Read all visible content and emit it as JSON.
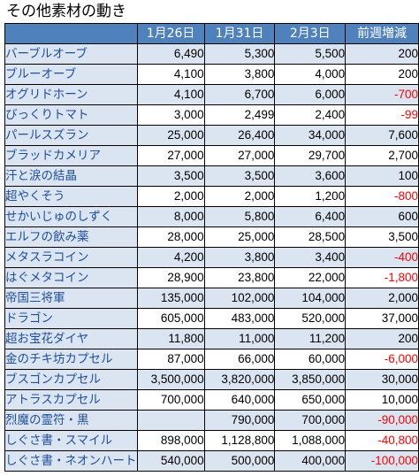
{
  "title": "その他素材の動き",
  "headers": [
    "",
    "1月26日",
    "1月31日",
    "2月3日",
    "前週増減"
  ],
  "negative_color": "#ff0000",
  "header_color": "#4f81bd",
  "rows": [
    {
      "name": "バーブルオーブ",
      "v1": "6,490",
      "v2": "5,300",
      "v3": "5,500",
      "diff": "200"
    },
    {
      "name": "ブルーオーブ",
      "v1": "4,100",
      "v2": "3,800",
      "v3": "4,000",
      "diff": "200"
    },
    {
      "name": "オグリドホーン",
      "v1": "4,100",
      "v2": "6,700",
      "v3": "6,000",
      "diff": "-700"
    },
    {
      "name": "びっくりトマト",
      "v1": "3,000",
      "v2": "2,499",
      "v3": "2,400",
      "diff": "-99"
    },
    {
      "name": "パールスズラン",
      "v1": "25,000",
      "v2": "26,400",
      "v3": "34,000",
      "diff": "7,600"
    },
    {
      "name": "ブラッドカメリア",
      "v1": "27,000",
      "v2": "27,000",
      "v3": "29,700",
      "diff": "2,700"
    },
    {
      "name": "汗と涙の結晶",
      "v1": "3,500",
      "v2": "3,500",
      "v3": "3,600",
      "diff": "100"
    },
    {
      "name": "超やくそう",
      "v1": "2,000",
      "v2": "2,000",
      "v3": "1,200",
      "diff": "-800"
    },
    {
      "name": "せかいじゅのしずく",
      "v1": "8,000",
      "v2": "5,800",
      "v3": "6,400",
      "diff": "600"
    },
    {
      "name": "エルフの飲み薬",
      "v1": "28,000",
      "v2": "25,000",
      "v3": "28,500",
      "diff": "3,500"
    },
    {
      "name": "メタスラコイン",
      "v1": "4,200",
      "v2": "3,800",
      "v3": "3,400",
      "diff": "-400"
    },
    {
      "name": "はぐメタコイン",
      "v1": "28,900",
      "v2": "23,800",
      "v3": "22,000",
      "diff": "-1,800"
    },
    {
      "name": "帝国三将軍",
      "v1": "135,000",
      "v2": "102,000",
      "v3": "104,000",
      "diff": "2,000"
    },
    {
      "name": "ドラゴン",
      "v1": "605,000",
      "v2": "483,000",
      "v3": "520,000",
      "diff": "37,000"
    },
    {
      "name": "超お宝花ダイヤ",
      "v1": "11,800",
      "v2": "11,000",
      "v3": "11,200",
      "diff": "200"
    },
    {
      "name": "金のチキ坊カプセル",
      "v1": "87,000",
      "v2": "66,000",
      "v3": "60,000",
      "diff": "-6,000"
    },
    {
      "name": "ブスゴンカプセル",
      "v1": "3,500,000",
      "v2": "3,820,000",
      "v3": "3,850,000",
      "diff": "30,000"
    },
    {
      "name": "アトラスカプセル",
      "v1": "700,000",
      "v2": "640,000",
      "v3": "650,000",
      "diff": "10,000"
    },
    {
      "name": "烈魔の霊符・黒",
      "v1": "",
      "v2": "790,000",
      "v3": "700,000",
      "diff": "-90,000"
    },
    {
      "name": "しぐさ書・スマイル",
      "v1": "898,000",
      "v2": "1,128,800",
      "v3": "1,088,000",
      "diff": "-40,800"
    },
    {
      "name": "しぐさ書・ネオンハート",
      "v1": "540,000",
      "v2": "500,000",
      "v3": "400,000",
      "diff": "-100,000"
    }
  ]
}
